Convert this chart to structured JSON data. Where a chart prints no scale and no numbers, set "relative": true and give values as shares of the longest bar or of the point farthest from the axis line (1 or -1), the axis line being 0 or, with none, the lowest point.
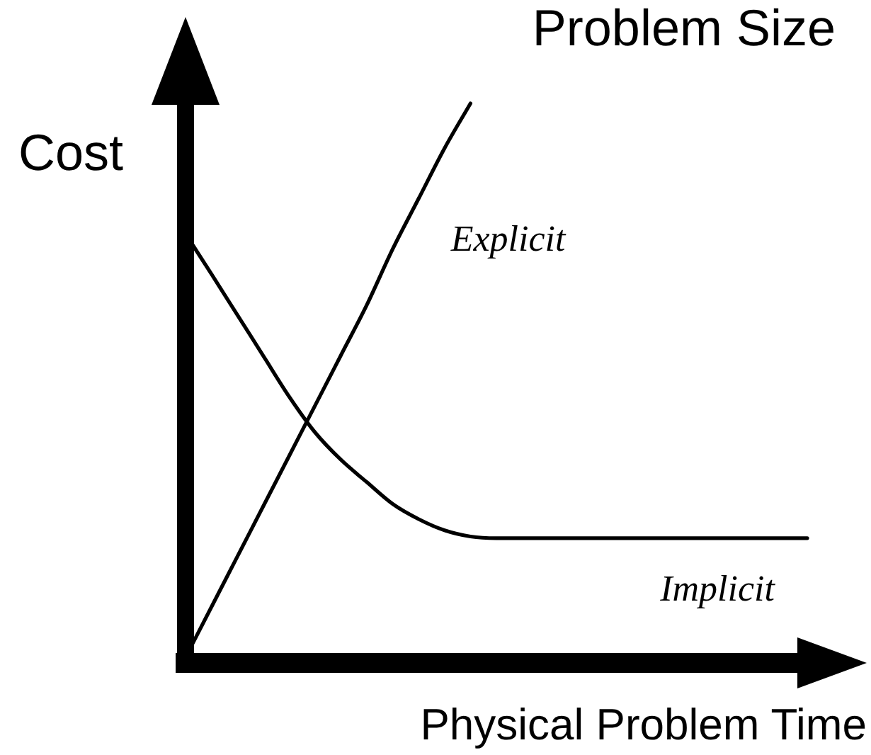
{
  "chart_data": {
    "type": "line",
    "title": "Problem Size",
    "xlabel": "Physical Problem Time",
    "ylabel": "Cost",
    "relative": true,
    "categories": [
      null,
      null,
      null,
      null,
      null,
      null,
      null,
      null,
      null,
      null,
      null,
      null,
      null,
      null,
      null,
      null,
      null,
      null,
      null,
      null,
      null,
      null,
      null,
      null,
      null
    ],
    "series": [
      {
        "name": "Explicit",
        "color": "#000000",
        "values": [
          0.01,
          0.1,
          0.19,
          0.28,
          0.37,
          0.46,
          0.55,
          0.64,
          0.74,
          0.83,
          0.92,
          1,
          null,
          null,
          null,
          null,
          null,
          null,
          null,
          null,
          null,
          null,
          null,
          null,
          null
        ]
      },
      {
        "name": "Implicit",
        "color": "#000000",
        "values": [
          0.767,
          0.695,
          0.622,
          0.549,
          0.476,
          0.412,
          0.363,
          0.323,
          0.284,
          0.257,
          0.237,
          0.226,
          0.223,
          0.223,
          0.223,
          0.223,
          0.223,
          0.223,
          0.223,
          0.223,
          0.223,
          0.223,
          0.223,
          0.223,
          0.223
        ]
      }
    ],
    "marker": "none",
    "line_style": "solid"
  }
}
